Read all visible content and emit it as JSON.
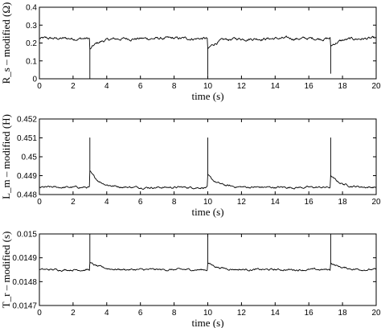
{
  "chart_data": [
    {
      "type": "line",
      "ylabel": "R_s – modified (Ω)",
      "xlabel": "time (s)",
      "xlim": [
        0,
        20
      ],
      "ylim": [
        0,
        0.4
      ],
      "x_ticks": [
        0,
        2,
        4,
        6,
        8,
        10,
        12,
        14,
        16,
        18,
        20
      ],
      "y_ticks": [
        "0",
        "0.1",
        "0.2",
        "0.3",
        "0.4"
      ],
      "y_tick_values": [
        0,
        0.1,
        0.2,
        0.3,
        0.4
      ],
      "grid": false,
      "series": [
        {
          "baseline": 0.225,
          "noise": 0.012,
          "events": [
            {
              "t": 3.0,
              "spike_to": 0.0,
              "settle": 0.16,
              "tau": 0.5
            },
            {
              "t": 10.0,
              "spike_to": 0.02,
              "settle": 0.16,
              "tau": 0.5
            },
            {
              "t": 17.3,
              "spike_to": 0.03,
              "settle": 0.18,
              "tau": 0.5
            }
          ]
        }
      ]
    },
    {
      "type": "line",
      "ylabel": "L_m – modified (H)",
      "xlabel": "time (s)",
      "xlim": [
        0,
        20
      ],
      "ylim": [
        0.448,
        0.452
      ],
      "x_ticks": [
        0,
        2,
        4,
        6,
        8,
        10,
        12,
        14,
        16,
        18,
        20
      ],
      "y_ticks": [
        "0.448",
        "0.449",
        "0.45",
        "0.451",
        "0.452"
      ],
      "y_tick_values": [
        0.448,
        0.449,
        0.45,
        0.451,
        0.452
      ],
      "grid": false,
      "series": [
        {
          "baseline": 0.44838,
          "noise": 8e-05,
          "events": [
            {
              "t": 3.0,
              "spike_to": 0.451,
              "settle": 0.4492,
              "tau": 0.6
            },
            {
              "t": 10.0,
              "spike_to": 0.451,
              "settle": 0.449,
              "tau": 0.6
            },
            {
              "t": 17.3,
              "spike_to": 0.451,
              "settle": 0.449,
              "tau": 0.6
            }
          ]
        }
      ]
    },
    {
      "type": "line",
      "ylabel": "T_r – modified (s)",
      "xlabel": "time (s)",
      "xlim": [
        0,
        20
      ],
      "ylim": [
        0.0147,
        0.015
      ],
      "x_ticks": [
        0,
        2,
        4,
        6,
        8,
        10,
        12,
        14,
        16,
        18,
        20
      ],
      "y_ticks": [
        "0.0147",
        "0.0148",
        "0.0149",
        "0.015"
      ],
      "y_tick_values": [
        0.0147,
        0.0148,
        0.0149,
        0.015
      ],
      "grid": false,
      "series": [
        {
          "baseline": 0.01485,
          "noise": 6e-06,
          "events": [
            {
              "t": 3.0,
              "spike_to": 0.015,
              "settle": 0.01488,
              "tau": 0.6
            },
            {
              "t": 10.0,
              "spike_to": 0.015,
              "settle": 0.01488,
              "tau": 0.6
            },
            {
              "t": 17.3,
              "spike_to": 0.015,
              "settle": 0.01488,
              "tau": 0.6
            }
          ]
        }
      ]
    }
  ]
}
